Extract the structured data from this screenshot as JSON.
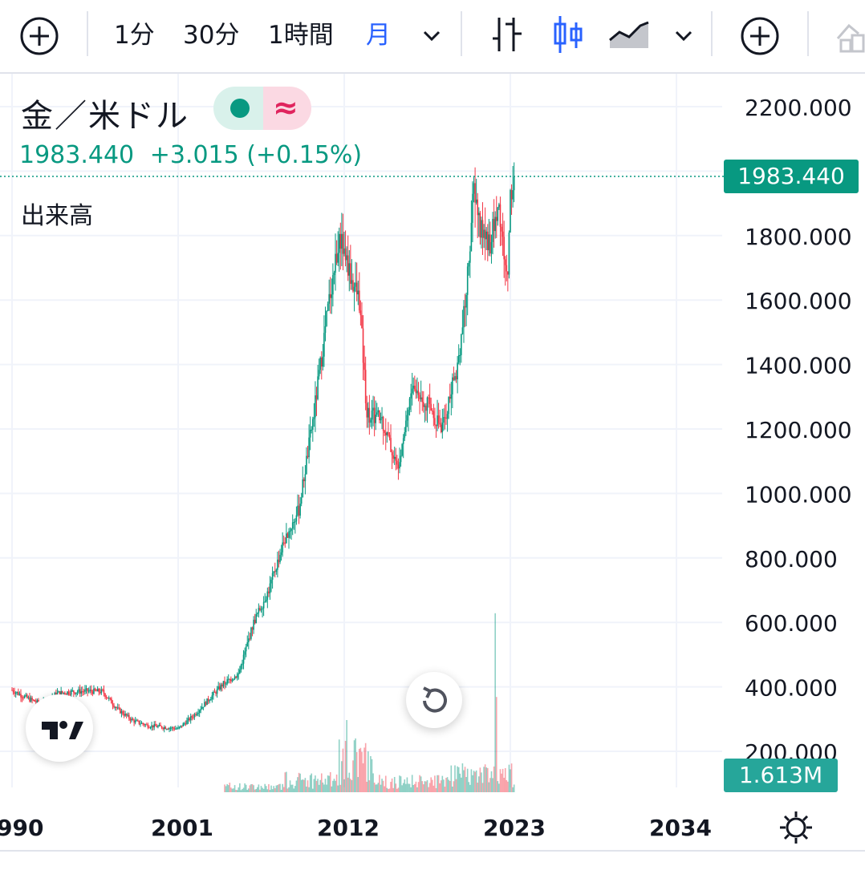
{
  "toolbar": {
    "intervals": [
      "1分",
      "30分",
      "1時間",
      "月"
    ],
    "active_interval": "月"
  },
  "symbol": {
    "title": "金／米ドル",
    "last": "1983.440",
    "change": "+3.015",
    "change_pct": "(+0.15%)",
    "volume_label": "出来高"
  },
  "price_tag": "1983.440",
  "volume_tag": "1.613M",
  "colors": {
    "up": "#089981",
    "down": "#f23645",
    "volume_tag": "#26a69a",
    "active": "#2962ff"
  },
  "chart_data": {
    "type": "candlestick",
    "title": "金／米ドル",
    "interval": "月",
    "last_price": 1983.44,
    "y_ticks": [
      "2200.000",
      "1800.000",
      "1600.000",
      "1400.000",
      "1200.000",
      "1000.000",
      "800.000",
      "600.000",
      "400.000",
      "200.000"
    ],
    "x_ticks": [
      "990",
      "2001",
      "2012",
      "2023",
      "2034"
    ],
    "ylim": [
      0,
      2200
    ],
    "xlim": [
      1990.0,
      2034.5
    ],
    "series": [
      {
        "points": [
          [
            1990.0,
            390
          ],
          [
            1991.0,
            365
          ],
          [
            1992.0,
            345
          ],
          [
            1993.0,
            380
          ],
          [
            1994.0,
            385
          ],
          [
            1995.0,
            387
          ],
          [
            1996.0,
            385
          ],
          [
            1997.0,
            330
          ],
          [
            1998.0,
            295
          ],
          [
            1999.0,
            280
          ],
          [
            2000.0,
            275
          ],
          [
            2001.0,
            270
          ],
          [
            2002.0,
            310
          ],
          [
            2003.0,
            360
          ],
          [
            2004.0,
            410
          ],
          [
            2005.0,
            440
          ],
          [
            2006.0,
            600
          ],
          [
            2007.0,
            700
          ],
          [
            2008.0,
            850
          ],
          [
            2009.0,
            950
          ],
          [
            2010.0,
            1250
          ],
          [
            2011.0,
            1600
          ],
          [
            2011.7,
            1800
          ],
          [
            2012.5,
            1660
          ],
          [
            2013.0,
            1600
          ],
          [
            2013.5,
            1250
          ],
          [
            2014.5,
            1230
          ],
          [
            2015.5,
            1080
          ],
          [
            2016.5,
            1330
          ],
          [
            2017.5,
            1280
          ],
          [
            2018.5,
            1200
          ],
          [
            2019.0,
            1300
          ],
          [
            2019.5,
            1400
          ],
          [
            2020.0,
            1580
          ],
          [
            2020.6,
            1950
          ],
          [
            2021.0,
            1820
          ],
          [
            2021.7,
            1780
          ],
          [
            2022.2,
            1900
          ],
          [
            2022.8,
            1650
          ],
          [
            2023.0,
            1930
          ],
          [
            2023.3,
            1983.44
          ]
        ]
      }
    ],
    "volume_spikes": [
      [
        2012.2,
        0.25
      ],
      [
        2012.7,
        0.18
      ],
      [
        2013.2,
        0.14
      ],
      [
        2019.8,
        0.1
      ],
      [
        2020.6,
        0.06
      ],
      [
        2022.0,
        0.62
      ],
      [
        2022.1,
        0.33
      ],
      [
        2022.3,
        0.08
      ]
    ]
  }
}
